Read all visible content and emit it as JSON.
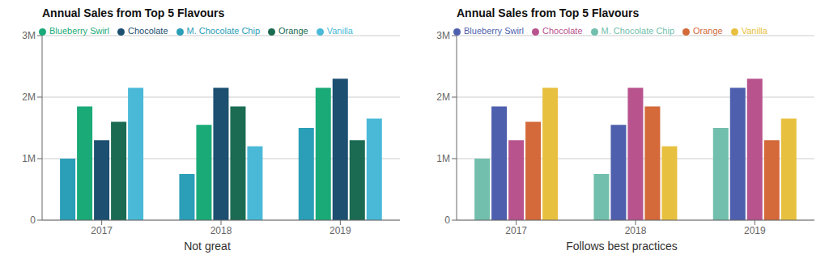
{
  "chart_data": [
    {
      "type": "bar",
      "title": "Annual Sales from Top 5 Flavours",
      "xlabel": "Not great",
      "categories": [
        "2017",
        "2018",
        "2019"
      ],
      "series": [
        {
          "name": "M. Chocolate Chip",
          "color": "#2b9eb8",
          "values": [
            1000000,
            750000,
            1500000
          ]
        },
        {
          "name": "Blueberry Swirl",
          "color": "#1aaa78",
          "values": [
            1850000,
            1550000,
            2150000
          ]
        },
        {
          "name": "Chocolate",
          "color": "#1c4f70",
          "values": [
            1300000,
            2150000,
            2300000
          ]
        },
        {
          "name": "Orange",
          "color": "#1a6b52",
          "values": [
            1600000,
            1850000,
            1300000
          ]
        },
        {
          "name": "Vanilla",
          "color": "#4ab9d8",
          "values": [
            2150000,
            1200000,
            1650000
          ]
        }
      ],
      "ylim": [
        0,
        3000000
      ],
      "yticks": [
        0,
        {
          "value": 1000000,
          "label": "1M"
        },
        {
          "value": 2000000,
          "label": "2M"
        },
        {
          "value": 3000000,
          "label": "3M"
        }
      ],
      "grid": true,
      "legend": "upper left"
    },
    {
      "type": "bar",
      "title": "Annual Sales from Top 5 Flavours",
      "xlabel": "Follows best practices",
      "categories": [
        "2017",
        "2018",
        "2019"
      ],
      "series": [
        {
          "name": "M. Chocolate Chip",
          "color": "#72bfad",
          "values": [
            1000000,
            750000,
            1500000
          ]
        },
        {
          "name": "Blueberry Swirl",
          "color": "#4e5fad",
          "values": [
            1850000,
            1550000,
            2150000
          ]
        },
        {
          "name": "Chocolate",
          "color": "#b8538e",
          "values": [
            1300000,
            2150000,
            2300000
          ]
        },
        {
          "name": "Orange",
          "color": "#d4693a",
          "values": [
            1600000,
            1850000,
            1300000
          ]
        },
        {
          "name": "Vanilla",
          "color": "#e8c040",
          "values": [
            2150000,
            1200000,
            1650000
          ]
        }
      ],
      "ylim": [
        0,
        3000000
      ],
      "yticks": [
        0,
        {
          "value": 1000000,
          "label": "1M"
        },
        {
          "value": 2000000,
          "label": "2M"
        },
        {
          "value": 3000000,
          "label": "3M"
        }
      ],
      "grid": true,
      "legend": "upper left"
    }
  ]
}
